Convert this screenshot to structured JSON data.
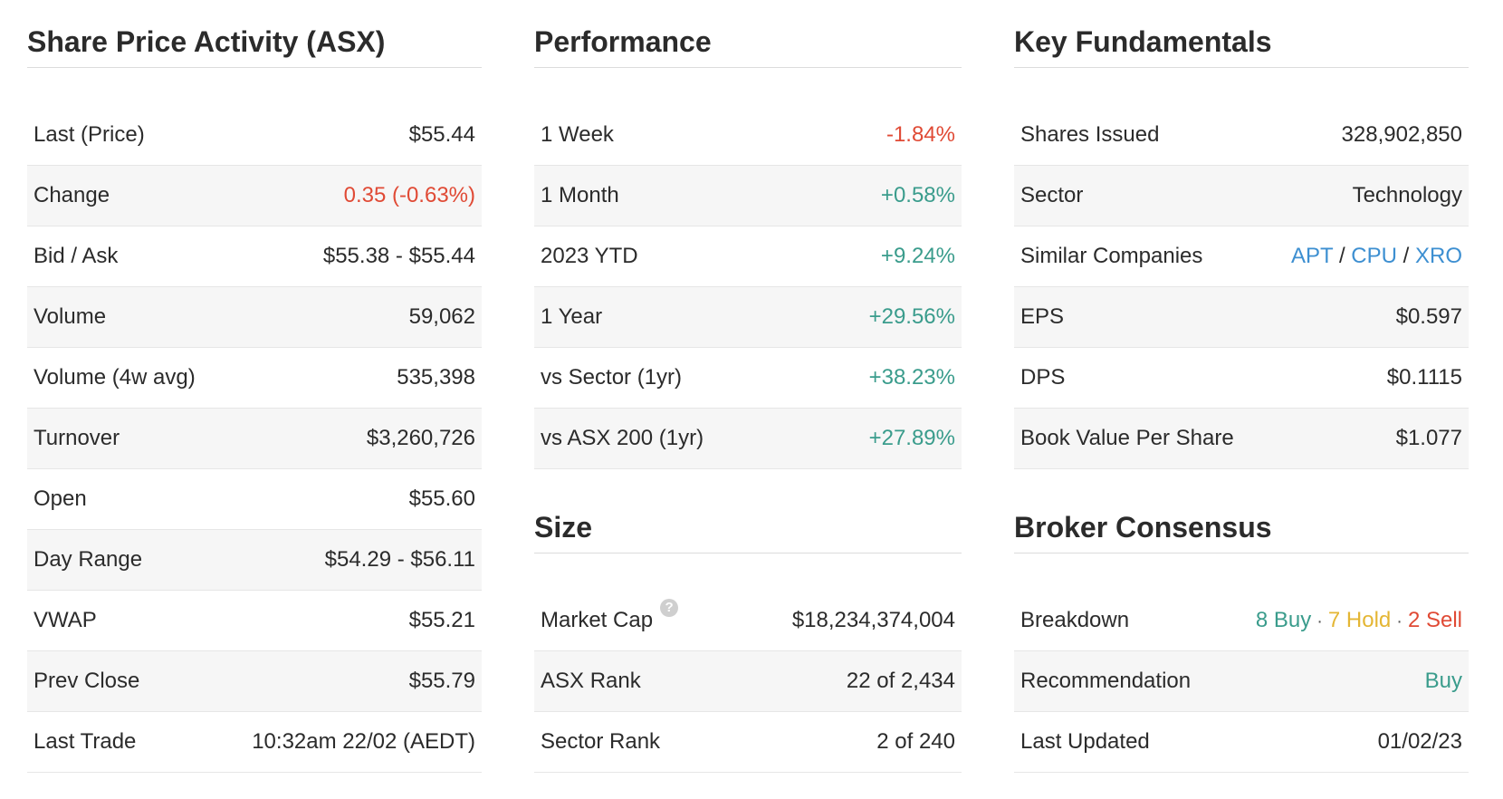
{
  "share_price": {
    "title": "Share Price Activity (ASX)",
    "rows": [
      {
        "label": "Last (Price)",
        "value": "$55.44"
      },
      {
        "label": "Change",
        "value": "0.35 (-0.63%)"
      },
      {
        "label": "Bid / Ask",
        "value": "$55.38 - $55.44"
      },
      {
        "label": "Volume",
        "value": "59,062"
      },
      {
        "label": "Volume (4w avg)",
        "value": "535,398"
      },
      {
        "label": "Turnover",
        "value": "$3,260,726"
      },
      {
        "label": "Open",
        "value": "$55.60"
      },
      {
        "label": "Day Range",
        "value": "$54.29 - $56.11"
      },
      {
        "label": "VWAP",
        "value": "$55.21"
      },
      {
        "label": "Prev Close",
        "value": "$55.79"
      },
      {
        "label": "Last Trade",
        "value": "10:32am 22/02 (AEDT)"
      }
    ]
  },
  "performance": {
    "title": "Performance",
    "rows": [
      {
        "label": "1 Week",
        "value": "-1.84%"
      },
      {
        "label": "1 Month",
        "value": "+0.58%"
      },
      {
        "label": "2023 YTD",
        "value": "+9.24%"
      },
      {
        "label": "1 Year",
        "value": "+29.56%"
      },
      {
        "label": "vs Sector (1yr)",
        "value": "+38.23%"
      },
      {
        "label": "vs ASX 200 (1yr)",
        "value": "+27.89%"
      }
    ]
  },
  "size": {
    "title": "Size",
    "rows": [
      {
        "label": "Market Cap",
        "value": "$18,234,374,004",
        "help": "?"
      },
      {
        "label": "ASX Rank",
        "value": "22 of 2,434"
      },
      {
        "label": "Sector Rank",
        "value": "2 of 240"
      }
    ]
  },
  "fundamentals": {
    "title": "Key Fundamentals",
    "rows": [
      {
        "label": "Shares Issued",
        "value": "328,902,850"
      },
      {
        "label": "Sector",
        "value": "Technology"
      },
      {
        "label": "Similar Companies",
        "links": [
          "APT",
          "CPU",
          "XRO"
        ],
        "separator": "/"
      },
      {
        "label": "EPS",
        "value": "$0.597"
      },
      {
        "label": "DPS",
        "value": "$0.1115"
      },
      {
        "label": "Book Value Per Share",
        "value": "$1.077"
      }
    ]
  },
  "broker": {
    "title": "Broker Consensus",
    "rows": [
      {
        "label": "Breakdown",
        "buy": "8 Buy",
        "hold": "7 Hold",
        "sell": "2 Sell",
        "dot": "·"
      },
      {
        "label": "Recommendation",
        "value": "Buy"
      },
      {
        "label": "Last Updated",
        "value": "01/02/23"
      }
    ]
  },
  "colors": {
    "negative": "#e04a35",
    "positive": "#3a9c8c",
    "link": "#3d8fd1",
    "hold": "#e4b634"
  }
}
